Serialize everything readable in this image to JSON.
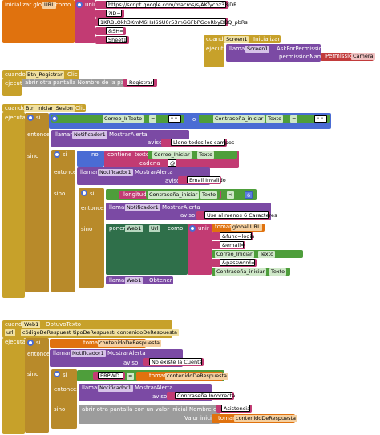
{
  "init_block": {
    "label": "inicializar global",
    "var_name": "URL",
    "como": "como",
    "unir": "unir",
    "strings": [
      "https://script.google.com/macros/s/AKfycbz33jDR...",
      "?ID=",
      "1KRBLOkh3KmM6HsI6SU0r53mGGFbPGceRbyDBQ_pbRs",
      "&SH=",
      "Sheet1"
    ]
  },
  "screen_init": {
    "cuando": "cuando",
    "component": "Screen1",
    "event": "Inicializar",
    "ejecutar": "ejecutar",
    "llamar": "llamar",
    "call_component": "Screen1",
    "method": "AskForPermission",
    "param": "permissionName",
    "permission_label": "Permission",
    "permission_value": "Camera"
  },
  "btn_registrar": {
    "cuando": "cuando",
    "component": "Btn_Registrar",
    "event": "Clic",
    "ejecutar": "ejecutar",
    "action": "abrir otra pantalla  Nombre de la pantalla",
    "screen_name": "Registrar"
  },
  "btn_login": {
    "cuando": "cuando",
    "component": "Btn_Iniciar_Sesion",
    "event": "Clic",
    "ejecutar": "ejecutar",
    "si": "si",
    "entonces": "entonces",
    "sino": "sino",
    "cond_left": "Correo_Iniciar",
    "texto": "Texto",
    "eq": "=",
    "empty": "\" \"",
    "o": "o",
    "cond_right": "Contraseña_iniciar",
    "llamar": "llamar",
    "notifier": "Notificador1",
    "mostrar_alerta": "MostrarAlerta",
    "aviso": "aviso",
    "msg_empty": "Llene todos los campos",
    "no": "no",
    "contiene": "contiene",
    "texto_word": "texto",
    "cadena": "cadena",
    "at": "@",
    "msg_email": "Email Invalido",
    "longitud": "longitud",
    "lt": "<",
    "min_len": "6",
    "msg_pwd": "Use al menos 6 Caracteres",
    "poner": "poner",
    "web": "Web1",
    "url": "Url",
    "como": "como",
    "unir": "unir",
    "tomar": "tomar",
    "global_url": "global URL",
    "func_login": "&func=login",
    "email_param": "&email=",
    "password_param": "&password=",
    "obtener": "Obtener"
  },
  "web_event": {
    "cuando": "cuando",
    "component": "Web1",
    "event": "ObtuvoTexto",
    "params": [
      "url",
      "códigoDeRespuesta",
      "tipoDeRespuesta",
      "contenidoDeRespuesta"
    ],
    "ejecutar": "ejecutar",
    "si": "si",
    "entonces": "entonces",
    "sino": "sino",
    "tomar": "tomar",
    "content": "contenidoDeRespuesta",
    "llamar": "llamar",
    "notifier": "Notificador1",
    "mostrar_alerta": "MostrarAlerta",
    "aviso": "aviso",
    "msg_no_account": "No existe la Cuenta",
    "err_pwd": "ERPWD",
    "eq": "=",
    "msg_bad_pwd": "Contraseña Incorrecta",
    "open_screen": "abrir otra pantalla con un valor inicial  Nombre de la pantalla",
    "screen_name": "Asistencia",
    "valor_inicial": "Valor inicial"
  }
}
